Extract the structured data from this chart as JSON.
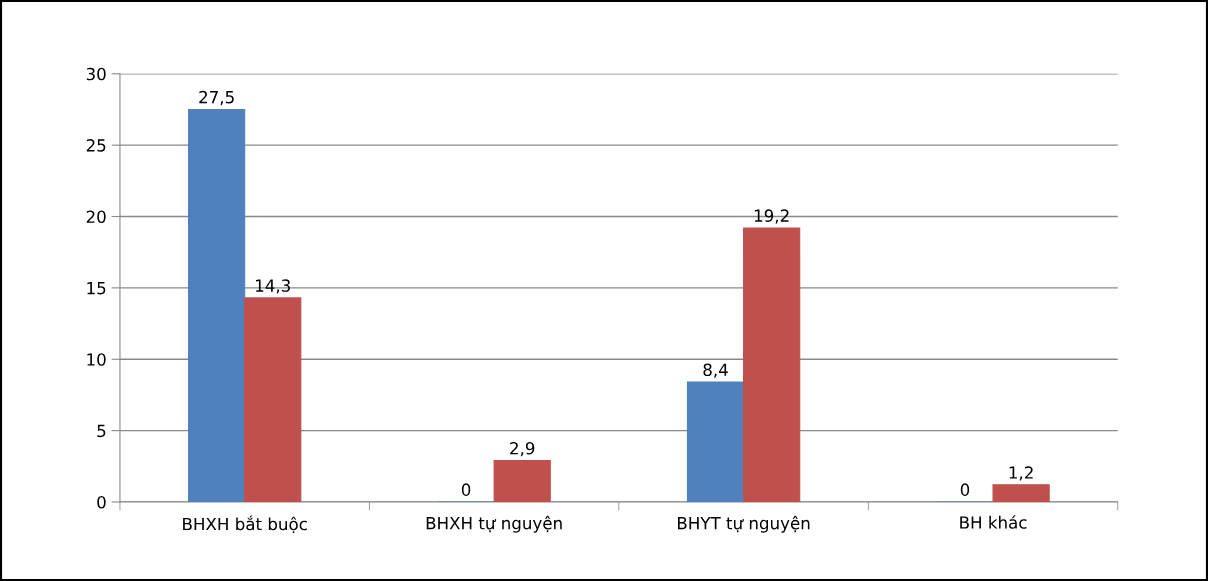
{
  "chart_data": {
    "type": "bar",
    "categories": [
      "BHXH bắt buộc",
      "BHXH tự nguyện",
      "BHYT tự nguyện",
      "BH khác"
    ],
    "series": [
      {
        "color": "#4f81bd",
        "values": [
          27.5,
          0,
          8.4,
          0
        ],
        "value_labels": [
          "27,5",
          "0",
          "8,4",
          "0"
        ]
      },
      {
        "color": "#c0504d",
        "values": [
          14.3,
          2.9,
          19.2,
          1.2
        ],
        "value_labels": [
          "14,3",
          "2,9",
          "19,2",
          "1,2"
        ]
      }
    ],
    "ylim": [
      0,
      30
    ],
    "yticks": [
      0,
      5,
      10,
      15,
      20,
      25,
      30
    ],
    "grid": "y",
    "legend": false
  }
}
